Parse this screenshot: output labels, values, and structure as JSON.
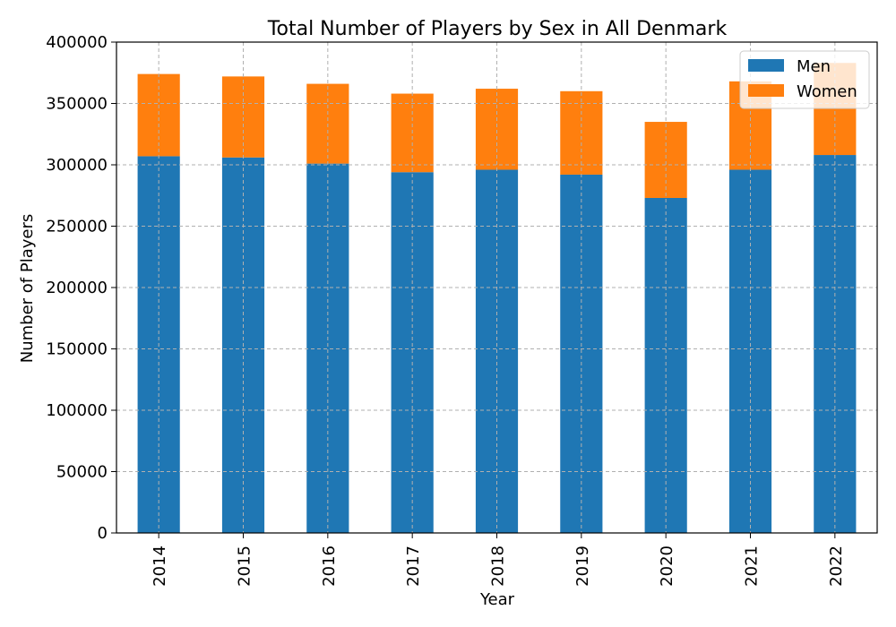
{
  "chart_data": {
    "type": "bar",
    "stacked": true,
    "title": "Total Number of Players by Sex in All Denmark",
    "xlabel": "Year",
    "ylabel": "Number of Players",
    "categories": [
      "2014",
      "2015",
      "2016",
      "2017",
      "2018",
      "2019",
      "2020",
      "2021",
      "2022"
    ],
    "series": [
      {
        "name": "Men",
        "color": "#1f77b4",
        "values": [
          307000,
          306000,
          301000,
          294000,
          296000,
          292000,
          273000,
          296000,
          308000
        ]
      },
      {
        "name": "Women",
        "color": "#ff7f0e",
        "values": [
          67000,
          66000,
          65000,
          64000,
          66000,
          68000,
          62000,
          72000,
          75000
        ]
      }
    ],
    "ylim": [
      0,
      400000
    ],
    "yticks": [
      0,
      50000,
      100000,
      150000,
      200000,
      250000,
      300000,
      350000,
      400000
    ],
    "grid": true,
    "legend_position": "top-right"
  }
}
